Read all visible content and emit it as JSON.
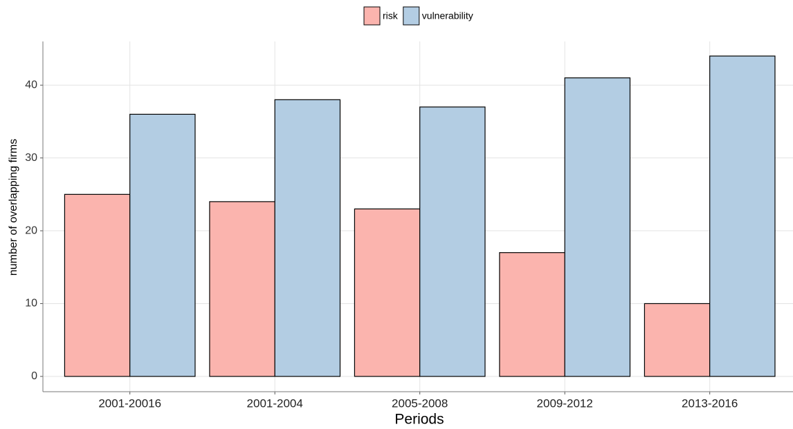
{
  "chart_data": {
    "type": "bar",
    "x_label": "Periods",
    "y_label": "number of overlapping firms",
    "categories": [
      "2001-20016",
      "2001-2004",
      "2005-2008",
      "2009-2012",
      "2013-2016"
    ],
    "series": [
      {
        "name": "risk",
        "color": "#fbb4ae",
        "values": [
          25,
          24,
          23,
          17,
          10
        ]
      },
      {
        "name": "vulnerability",
        "color": "#b3cde3",
        "values": [
          36,
          38,
          37,
          41,
          44
        ]
      }
    ],
    "ylim": [
      -2.1,
      46
    ],
    "yticks": [
      0,
      10,
      20,
      30,
      40
    ],
    "grid": true,
    "legend": "top"
  }
}
